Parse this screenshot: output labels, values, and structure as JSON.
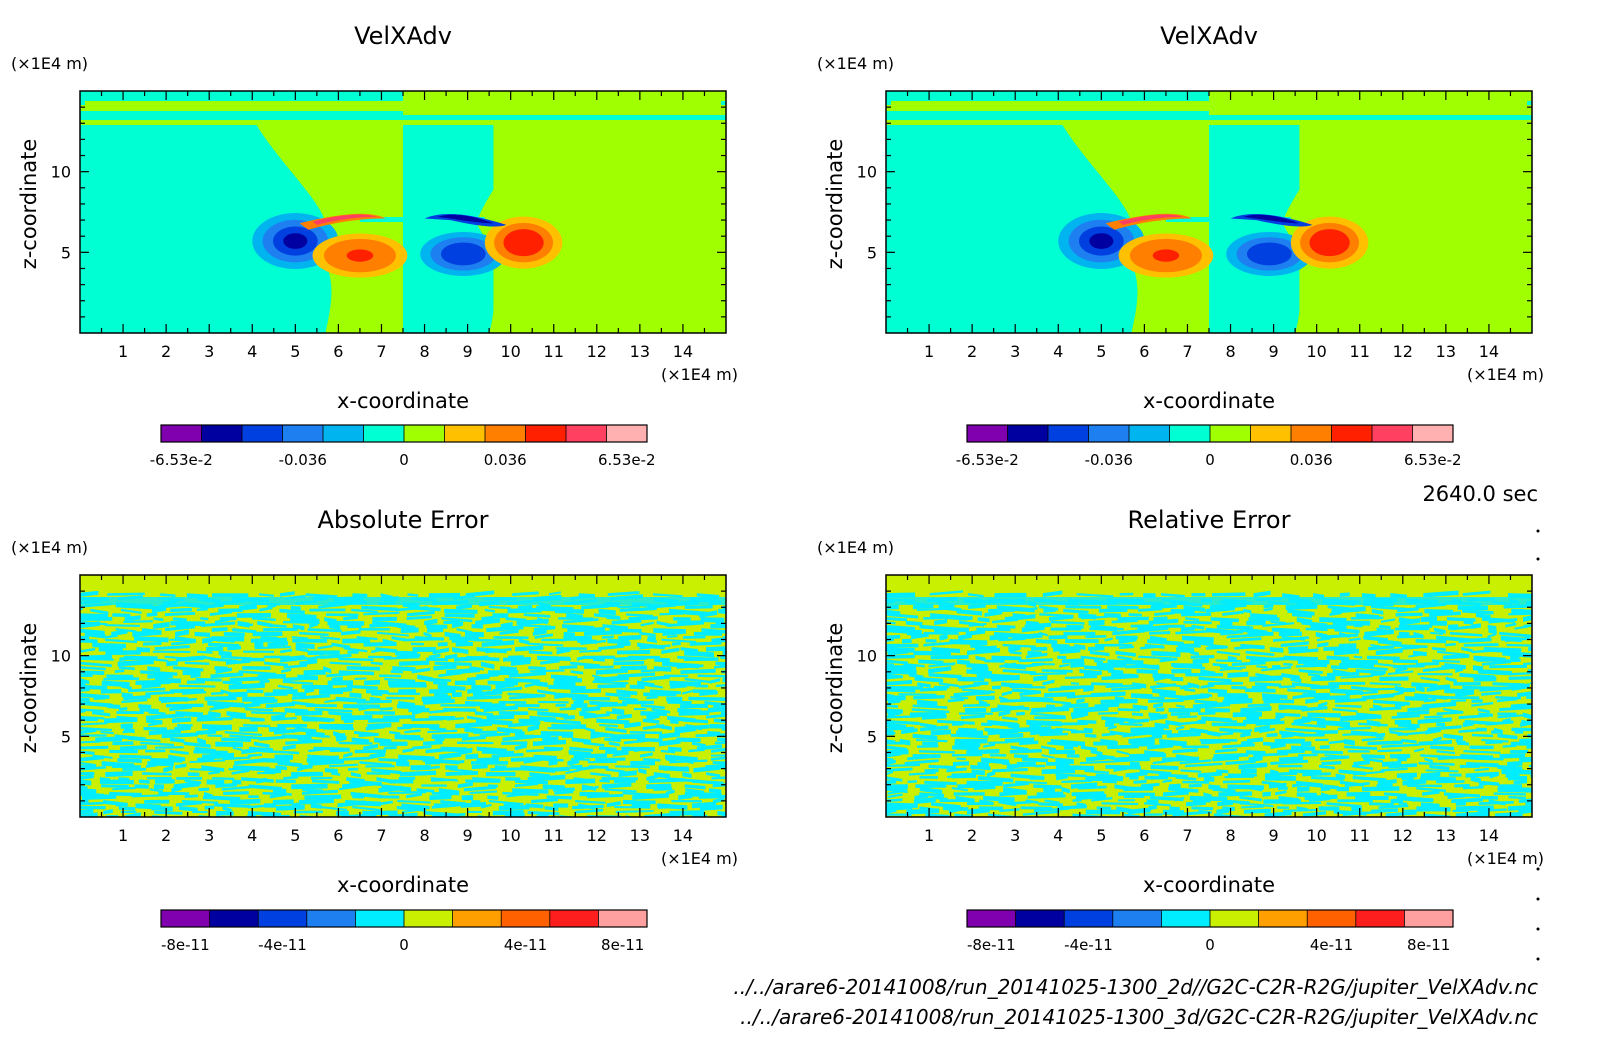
{
  "time_label": "2640.0 sec",
  "files": [
    "../../arare6-20141008/run_20141025-1300_2d//G2C-C2R-R2G/jupiter_VelXAdv.nc",
    "../../arare6-20141008/run_20141025-1300_3d/G2C-C2R-R2G/jupiter_VelXAdv.nc"
  ],
  "colors": {
    "velocity_bins": [
      "#8000b0",
      "#0000a0",
      "#0040e0",
      "#1e80f0",
      "#00b4f0",
      "#00ffd2",
      "#a0ff00",
      "#ffc000",
      "#ff7f00",
      "#ff2000",
      "#ff4060",
      "#ffb0b0"
    ],
    "error_bins": [
      "#8000b0",
      "#0000a0",
      "#0040e0",
      "#1e80f0",
      "#00ecff",
      "#c8f000",
      "#ffa000",
      "#ff6000",
      "#ff1e1e",
      "#ffa0a0"
    ],
    "velocity_fill_sky": "#00ffd2",
    "velocity_fill_green": "#a0ff00",
    "error_fill_a": "#00ecff",
    "error_fill_b": "#c8f000"
  },
  "chart_data": [
    {
      "id": "velxadv-2d",
      "type": "heatmap",
      "title": "VelXAdv",
      "xlabel": "x-coordinate",
      "ylabel": "z-coordinate",
      "x_unit": "(×1E4 m)",
      "y_unit": "(×1E4 m)",
      "xlim": [
        0,
        15
      ],
      "ylim": [
        0,
        15
      ],
      "xticks": [
        1,
        2,
        3,
        4,
        5,
        6,
        7,
        8,
        9,
        10,
        11,
        12,
        13,
        14
      ],
      "yticks": [
        5,
        10
      ],
      "colorbar": {
        "ticks": [
          "-6.53e-2",
          "-0.036",
          "0",
          "0.036",
          "6.53e-2"
        ],
        "bins": 12,
        "min": -0.0653,
        "max": 0.0653
      }
    },
    {
      "id": "velxadv-3d",
      "type": "heatmap",
      "title": "VelXAdv",
      "xlabel": "x-coordinate",
      "ylabel": "z-coordinate",
      "x_unit": "(×1E4 m)",
      "y_unit": "(×1E4 m)",
      "xlim": [
        0,
        15
      ],
      "ylim": [
        0,
        15
      ],
      "xticks": [
        1,
        2,
        3,
        4,
        5,
        6,
        7,
        8,
        9,
        10,
        11,
        12,
        13,
        14
      ],
      "yticks": [
        5,
        10
      ],
      "colorbar": {
        "ticks": [
          "-6.53e-2",
          "-0.036",
          "0",
          "0.036",
          "6.53e-2"
        ],
        "bins": 12,
        "min": -0.0653,
        "max": 0.0653
      }
    },
    {
      "id": "absolute-error",
      "type": "heatmap",
      "title": "Absolute Error",
      "xlabel": "x-coordinate",
      "ylabel": "z-coordinate",
      "x_unit": "(×1E4 m)",
      "y_unit": "(×1E4 m)",
      "xlim": [
        0,
        15
      ],
      "ylim": [
        0,
        15
      ],
      "xticks": [
        1,
        2,
        3,
        4,
        5,
        6,
        7,
        8,
        9,
        10,
        11,
        12,
        13,
        14
      ],
      "yticks": [
        5,
        10
      ],
      "colorbar": {
        "ticks": [
          "-8e-11",
          "-4e-11",
          "0",
          "4e-11",
          "8e-11"
        ],
        "bins": 10,
        "min": -1e-10,
        "max": 1e-10
      }
    },
    {
      "id": "relative-error",
      "type": "heatmap",
      "title": "Relative Error",
      "xlabel": "x-coordinate",
      "ylabel": "z-coordinate",
      "x_unit": "(×1E4 m)",
      "y_unit": "(×1E4 m)",
      "xlim": [
        0,
        15
      ],
      "ylim": [
        0,
        15
      ],
      "xticks": [
        1,
        2,
        3,
        4,
        5,
        6,
        7,
        8,
        9,
        10,
        11,
        12,
        13,
        14
      ],
      "yticks": [
        5,
        10
      ],
      "colorbar": {
        "ticks": [
          "-8e-11",
          "-4e-11",
          "0",
          "4e-11",
          "8e-11"
        ],
        "bins": 10,
        "min": -1e-10,
        "max": 1e-10
      }
    }
  ]
}
